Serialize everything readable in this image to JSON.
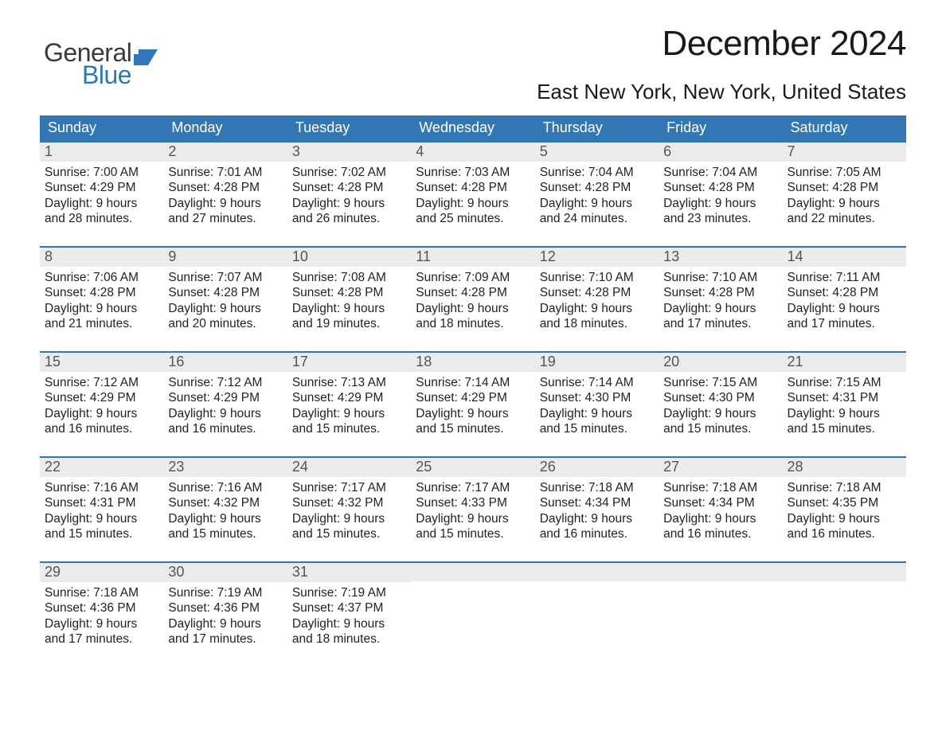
{
  "brand": {
    "word1": "General",
    "word2": "Blue",
    "flag_color": "#2f77b6"
  },
  "title": "December 2024",
  "location": "East New York, New York, United States",
  "colors": {
    "header_bg": "#3277b4",
    "header_fg": "#ffffff",
    "daynum_bg": "#ebebeb",
    "week_border": "#3277b4"
  },
  "day_headers": [
    "Sunday",
    "Monday",
    "Tuesday",
    "Wednesday",
    "Thursday",
    "Friday",
    "Saturday"
  ],
  "weeks": [
    [
      {
        "n": "1",
        "sunrise": "Sunrise: 7:00 AM",
        "sunset": "Sunset: 4:29 PM",
        "d1": "Daylight: 9 hours",
        "d2": "and 28 minutes."
      },
      {
        "n": "2",
        "sunrise": "Sunrise: 7:01 AM",
        "sunset": "Sunset: 4:28 PM",
        "d1": "Daylight: 9 hours",
        "d2": "and 27 minutes."
      },
      {
        "n": "3",
        "sunrise": "Sunrise: 7:02 AM",
        "sunset": "Sunset: 4:28 PM",
        "d1": "Daylight: 9 hours",
        "d2": "and 26 minutes."
      },
      {
        "n": "4",
        "sunrise": "Sunrise: 7:03 AM",
        "sunset": "Sunset: 4:28 PM",
        "d1": "Daylight: 9 hours",
        "d2": "and 25 minutes."
      },
      {
        "n": "5",
        "sunrise": "Sunrise: 7:04 AM",
        "sunset": "Sunset: 4:28 PM",
        "d1": "Daylight: 9 hours",
        "d2": "and 24 minutes."
      },
      {
        "n": "6",
        "sunrise": "Sunrise: 7:04 AM",
        "sunset": "Sunset: 4:28 PM",
        "d1": "Daylight: 9 hours",
        "d2": "and 23 minutes."
      },
      {
        "n": "7",
        "sunrise": "Sunrise: 7:05 AM",
        "sunset": "Sunset: 4:28 PM",
        "d1": "Daylight: 9 hours",
        "d2": "and 22 minutes."
      }
    ],
    [
      {
        "n": "8",
        "sunrise": "Sunrise: 7:06 AM",
        "sunset": "Sunset: 4:28 PM",
        "d1": "Daylight: 9 hours",
        "d2": "and 21 minutes."
      },
      {
        "n": "9",
        "sunrise": "Sunrise: 7:07 AM",
        "sunset": "Sunset: 4:28 PM",
        "d1": "Daylight: 9 hours",
        "d2": "and 20 minutes."
      },
      {
        "n": "10",
        "sunrise": "Sunrise: 7:08 AM",
        "sunset": "Sunset: 4:28 PM",
        "d1": "Daylight: 9 hours",
        "d2": "and 19 minutes."
      },
      {
        "n": "11",
        "sunrise": "Sunrise: 7:09 AM",
        "sunset": "Sunset: 4:28 PM",
        "d1": "Daylight: 9 hours",
        "d2": "and 18 minutes."
      },
      {
        "n": "12",
        "sunrise": "Sunrise: 7:10 AM",
        "sunset": "Sunset: 4:28 PM",
        "d1": "Daylight: 9 hours",
        "d2": "and 18 minutes."
      },
      {
        "n": "13",
        "sunrise": "Sunrise: 7:10 AM",
        "sunset": "Sunset: 4:28 PM",
        "d1": "Daylight: 9 hours",
        "d2": "and 17 minutes."
      },
      {
        "n": "14",
        "sunrise": "Sunrise: 7:11 AM",
        "sunset": "Sunset: 4:28 PM",
        "d1": "Daylight: 9 hours",
        "d2": "and 17 minutes."
      }
    ],
    [
      {
        "n": "15",
        "sunrise": "Sunrise: 7:12 AM",
        "sunset": "Sunset: 4:29 PM",
        "d1": "Daylight: 9 hours",
        "d2": "and 16 minutes."
      },
      {
        "n": "16",
        "sunrise": "Sunrise: 7:12 AM",
        "sunset": "Sunset: 4:29 PM",
        "d1": "Daylight: 9 hours",
        "d2": "and 16 minutes."
      },
      {
        "n": "17",
        "sunrise": "Sunrise: 7:13 AM",
        "sunset": "Sunset: 4:29 PM",
        "d1": "Daylight: 9 hours",
        "d2": "and 15 minutes."
      },
      {
        "n": "18",
        "sunrise": "Sunrise: 7:14 AM",
        "sunset": "Sunset: 4:29 PM",
        "d1": "Daylight: 9 hours",
        "d2": "and 15 minutes."
      },
      {
        "n": "19",
        "sunrise": "Sunrise: 7:14 AM",
        "sunset": "Sunset: 4:30 PM",
        "d1": "Daylight: 9 hours",
        "d2": "and 15 minutes."
      },
      {
        "n": "20",
        "sunrise": "Sunrise: 7:15 AM",
        "sunset": "Sunset: 4:30 PM",
        "d1": "Daylight: 9 hours",
        "d2": "and 15 minutes."
      },
      {
        "n": "21",
        "sunrise": "Sunrise: 7:15 AM",
        "sunset": "Sunset: 4:31 PM",
        "d1": "Daylight: 9 hours",
        "d2": "and 15 minutes."
      }
    ],
    [
      {
        "n": "22",
        "sunrise": "Sunrise: 7:16 AM",
        "sunset": "Sunset: 4:31 PM",
        "d1": "Daylight: 9 hours",
        "d2": "and 15 minutes."
      },
      {
        "n": "23",
        "sunrise": "Sunrise: 7:16 AM",
        "sunset": "Sunset: 4:32 PM",
        "d1": "Daylight: 9 hours",
        "d2": "and 15 minutes."
      },
      {
        "n": "24",
        "sunrise": "Sunrise: 7:17 AM",
        "sunset": "Sunset: 4:32 PM",
        "d1": "Daylight: 9 hours",
        "d2": "and 15 minutes."
      },
      {
        "n": "25",
        "sunrise": "Sunrise: 7:17 AM",
        "sunset": "Sunset: 4:33 PM",
        "d1": "Daylight: 9 hours",
        "d2": "and 15 minutes."
      },
      {
        "n": "26",
        "sunrise": "Sunrise: 7:18 AM",
        "sunset": "Sunset: 4:34 PM",
        "d1": "Daylight: 9 hours",
        "d2": "and 16 minutes."
      },
      {
        "n": "27",
        "sunrise": "Sunrise: 7:18 AM",
        "sunset": "Sunset: 4:34 PM",
        "d1": "Daylight: 9 hours",
        "d2": "and 16 minutes."
      },
      {
        "n": "28",
        "sunrise": "Sunrise: 7:18 AM",
        "sunset": "Sunset: 4:35 PM",
        "d1": "Daylight: 9 hours",
        "d2": "and 16 minutes."
      }
    ],
    [
      {
        "n": "29",
        "sunrise": "Sunrise: 7:18 AM",
        "sunset": "Sunset: 4:36 PM",
        "d1": "Daylight: 9 hours",
        "d2": "and 17 minutes."
      },
      {
        "n": "30",
        "sunrise": "Sunrise: 7:19 AM",
        "sunset": "Sunset: 4:36 PM",
        "d1": "Daylight: 9 hours",
        "d2": "and 17 minutes."
      },
      {
        "n": "31",
        "sunrise": "Sunrise: 7:19 AM",
        "sunset": "Sunset: 4:37 PM",
        "d1": "Daylight: 9 hours",
        "d2": "and 18 minutes."
      },
      null,
      null,
      null,
      null
    ]
  ]
}
